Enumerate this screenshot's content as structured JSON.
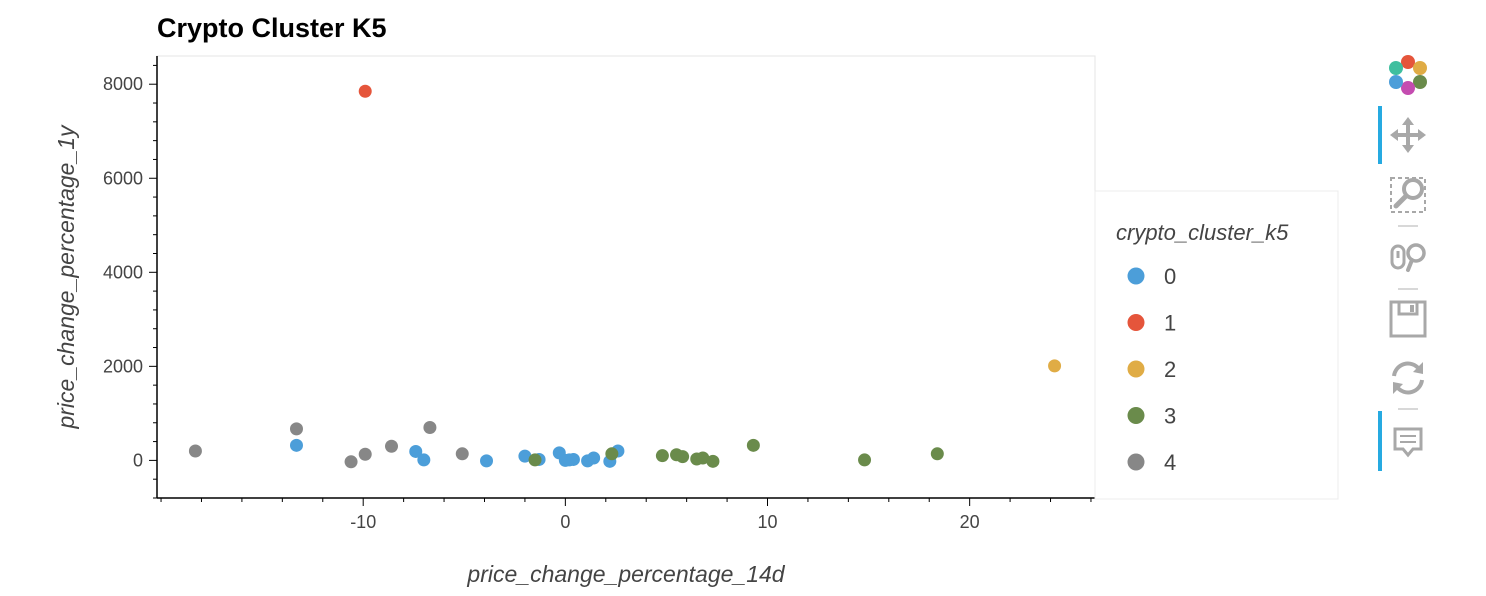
{
  "chart_data": {
    "type": "scatter",
    "title": "Crypto Cluster K5",
    "xlabel": "price_change_percentage_14d",
    "ylabel": "price_change_percentage_1y",
    "xlim": [
      -20.2,
      26.2
    ],
    "ylim": [
      -800,
      8600
    ],
    "x_ticks": [
      -10,
      0,
      10,
      20
    ],
    "y_ticks": [
      0,
      2000,
      4000,
      6000,
      8000
    ],
    "grid": false,
    "legend": {
      "title": "crypto_cluster_k5",
      "placement": "right"
    },
    "series": [
      {
        "name": "0",
        "color": "#4c9ed9",
        "x": [
          -13.3,
          -7.4,
          -7.0,
          -3.9,
          -2.0,
          -1.3,
          -0.3,
          0.0,
          0.2,
          0.4,
          1.1,
          1.4,
          2.2,
          2.6
        ],
        "y": [
          320,
          190,
          10,
          -10,
          90,
          20,
          160,
          0,
          10,
          20,
          -10,
          50,
          -20,
          200
        ]
      },
      {
        "name": "1",
        "color": "#e5553b",
        "x": [
          -9.9
        ],
        "y": [
          7850
        ]
      },
      {
        "name": "2",
        "color": "#e0ac45",
        "x": [
          24.2
        ],
        "y": [
          2010
        ]
      },
      {
        "name": "3",
        "color": "#6a8b4b",
        "x": [
          -1.5,
          2.3,
          4.8,
          5.5,
          5.8,
          6.5,
          6.8,
          7.3,
          9.3,
          14.8,
          18.4
        ],
        "y": [
          10,
          140,
          100,
          120,
          80,
          30,
          50,
          -20,
          320,
          10,
          140
        ]
      },
      {
        "name": "4",
        "color": "#878787",
        "x": [
          -18.3,
          -13.3,
          -10.6,
          -9.9,
          -8.6,
          -6.7,
          -5.1
        ],
        "y": [
          200,
          670,
          -30,
          130,
          300,
          700,
          140
        ]
      }
    ]
  },
  "toolbar": {
    "tools": [
      {
        "icon": "bokeh-logo-icon"
      },
      {
        "icon": "pan-icon",
        "active": true
      },
      {
        "icon": "box-zoom-icon"
      },
      {
        "icon": "wheel-zoom-icon"
      },
      {
        "icon": "save-icon"
      },
      {
        "icon": "reset-icon"
      },
      {
        "icon": "hover-icon",
        "active": true
      }
    ],
    "active_color": "#26aae1"
  }
}
